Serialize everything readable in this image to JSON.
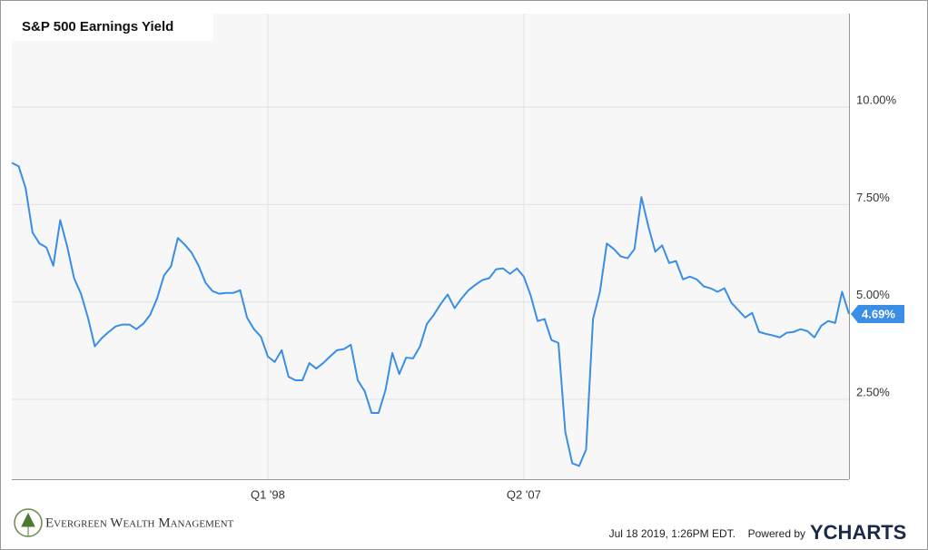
{
  "chart_data": {
    "type": "line",
    "title": "S&P 500 Earnings Yield",
    "x": [
      1988.75,
      1989,
      1989.25,
      1989.5,
      1989.75,
      1990,
      1990.25,
      1990.5,
      1990.75,
      1991,
      1991.25,
      1991.5,
      1991.75,
      1992,
      1992.25,
      1992.5,
      1992.75,
      1993,
      1993.25,
      1993.5,
      1993.75,
      1994,
      1994.25,
      1994.5,
      1994.75,
      1995,
      1995.25,
      1995.5,
      1995.75,
      1996,
      1996.25,
      1996.5,
      1996.75,
      1997,
      1997.25,
      1997.5,
      1997.75,
      1998,
      1998.25,
      1998.5,
      1998.75,
      1999,
      1999.25,
      1999.5,
      1999.75,
      2000,
      2000.25,
      2000.5,
      2000.75,
      2001,
      2001.25,
      2001.5,
      2001.75,
      2002,
      2002.25,
      2002.5,
      2002.75,
      2003,
      2003.25,
      2003.5,
      2003.75,
      2004,
      2004.25,
      2004.5,
      2004.75,
      2005,
      2005.25,
      2005.5,
      2005.75,
      2006,
      2006.25,
      2006.5,
      2006.75,
      2007,
      2007.25,
      2007.5,
      2007.75,
      2008,
      2008.25,
      2008.5,
      2008.75,
      2009,
      2009.25,
      2009.5,
      2009.75,
      2010,
      2010.25,
      2010.5,
      2010.75,
      2011,
      2011.25,
      2011.5,
      2011.75,
      2012,
      2012.25,
      2012.5,
      2012.75,
      2013,
      2013.25,
      2013.5,
      2013.75,
      2014,
      2014.25,
      2014.5,
      2014.75,
      2015,
      2015.25,
      2015.5,
      2015.75,
      2016,
      2016.25,
      2016.5,
      2016.75,
      2017,
      2017.25,
      2017.5,
      2017.75,
      2018,
      2018.25,
      2018.5,
      2018.75,
      2019
    ],
    "series": [
      {
        "name": "S&P 500 Earnings Yield",
        "color": "#3a8ee6",
        "values": [
          8.57,
          8.48,
          7.92,
          6.78,
          6.5,
          6.4,
          5.93,
          7.1,
          6.43,
          5.61,
          5.21,
          4.6,
          3.86,
          4.07,
          4.23,
          4.37,
          4.42,
          4.42,
          4.3,
          4.44,
          4.67,
          5.09,
          5.68,
          5.91,
          6.64,
          6.47,
          6.26,
          5.93,
          5.49,
          5.28,
          5.21,
          5.23,
          5.23,
          5.3,
          4.6,
          4.3,
          4.11,
          3.6,
          3.46,
          3.76,
          3.08,
          2.99,
          2.99,
          3.43,
          3.29,
          3.43,
          3.6,
          3.76,
          3.79,
          3.9,
          2.99,
          2.71,
          2.15,
          2.15,
          2.73,
          3.69,
          3.15,
          3.57,
          3.55,
          3.86,
          4.44,
          4.67,
          4.95,
          5.19,
          4.84,
          5.09,
          5.3,
          5.44,
          5.56,
          5.61,
          5.84,
          5.86,
          5.72,
          5.86,
          5.65,
          5.16,
          4.51,
          4.56,
          4.02,
          3.95,
          1.66,
          0.86,
          0.79,
          1.21,
          4.56,
          5.26,
          6.5,
          6.36,
          6.17,
          6.12,
          6.36,
          7.69,
          6.94,
          6.29,
          6.45,
          6,
          6.05,
          5.58,
          5.65,
          5.58,
          5.4,
          5.35,
          5.26,
          5.35,
          4.98,
          4.79,
          4.6,
          4.72,
          4.23,
          4.18,
          4.14,
          4.09,
          4.21,
          4.23,
          4.3,
          4.25,
          4.09,
          4.39,
          4.51,
          4.46,
          5.26,
          4.69
        ],
        "value_labels": [
          null,
          null,
          null,
          null,
          null,
          null,
          null,
          null,
          null,
          null,
          null,
          null,
          null,
          null,
          null,
          null,
          null,
          null,
          null,
          null,
          null,
          null,
          null,
          null,
          null,
          null,
          null,
          null,
          null,
          null,
          null,
          null,
          null,
          null,
          null,
          null,
          null,
          null,
          null,
          null,
          null,
          null,
          null,
          null,
          null,
          null,
          null,
          null,
          null,
          null,
          null,
          null,
          null,
          null,
          null,
          null,
          null,
          null,
          null,
          null,
          null,
          null,
          null,
          null,
          null,
          null,
          null,
          null,
          null,
          null,
          null,
          null,
          null,
          null,
          null,
          null,
          null,
          null,
          null,
          null,
          null,
          null,
          null,
          null,
          null,
          null,
          null,
          null,
          null,
          null,
          null,
          null,
          null,
          null,
          null,
          null,
          null,
          null,
          null,
          null,
          null,
          null,
          null,
          null,
          null,
          null,
          null,
          null,
          null,
          null,
          null,
          null,
          null,
          null,
          null,
          null,
          null,
          null,
          null,
          null,
          null,
          "4.69%"
        ]
      }
    ],
    "xlim": [
      1988.75,
      2019
    ],
    "xticks": [
      {
        "value": 1998,
        "label": "Q1 '98"
      },
      {
        "value": 2007.25,
        "label": "Q2 '07"
      }
    ],
    "ylim": [
      0.45,
      12.4
    ],
    "yticks": [
      {
        "value": 2.5,
        "label": "2.50%"
      },
      {
        "value": 5,
        "label": "5.00%"
      },
      {
        "value": 7.5,
        "label": "7.50%"
      },
      {
        "value": 10,
        "label": "10.00%"
      }
    ],
    "grid": true
  },
  "footer": {
    "brand": "Evergreen Wealth Management",
    "timestamp": "Jul 18 2019, 1:26PM EDT.",
    "powered_by": "Powered by",
    "logo": "YCHARTS"
  }
}
